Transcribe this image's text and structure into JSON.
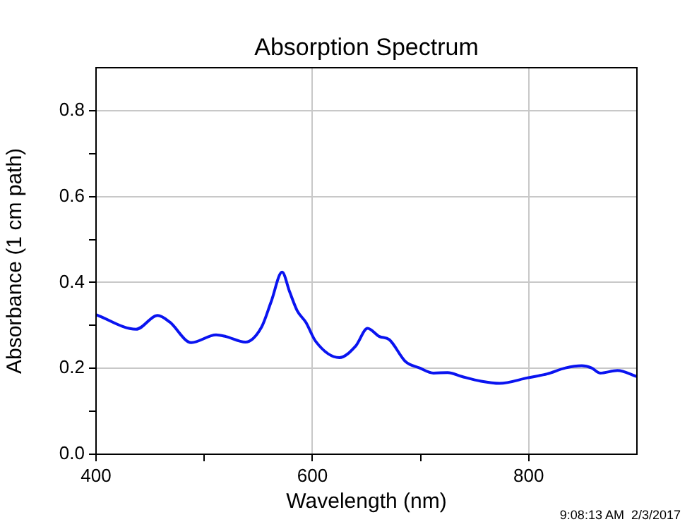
{
  "chart_data": {
    "type": "line",
    "title": "Absorption Spectrum",
    "xlabel": "Wavelength (nm)",
    "ylabel": "Absorbance (1 cm path)",
    "annotations": [
      "9:08:13 AM  2/3/2017"
    ],
    "xlim": [
      400,
      900
    ],
    "xticks": [
      400,
      {
        "value": 500,
        "label": null
      },
      600,
      {
        "value": 700,
        "label": null
      },
      800
    ],
    "ylim": [
      0,
      0.9
    ],
    "yticks": [
      {
        "value": 0,
        "label": "0.0"
      },
      {
        "value": 0.1,
        "label": null
      },
      0.2,
      {
        "value": 0.3,
        "label": null
      },
      0.4,
      {
        "value": 0.5,
        "label": null
      },
      0.6,
      {
        "value": 0.7,
        "label": null
      },
      0.8
    ],
    "grid": true,
    "marker": "none",
    "line_style": "solid",
    "series": [
      {
        "color": "#0a14f0",
        "x": [
          400,
          437,
          457,
          468,
          488,
          511,
          520,
          538,
          553,
          562,
          572,
          579,
          586,
          594,
          603,
          625,
          640,
          651,
          662,
          671,
          686,
          699,
          712,
          725,
          738,
          756,
          773,
          799,
          817,
          834,
          849,
          858,
          866,
          882,
          900
        ],
        "values": [
          0.325,
          0.291,
          0.323,
          0.308,
          0.26,
          0.278,
          0.274,
          0.261,
          0.296,
          0.356,
          0.424,
          0.378,
          0.334,
          0.307,
          0.263,
          0.225,
          0.252,
          0.293,
          0.274,
          0.267,
          0.216,
          0.201,
          0.189,
          0.19,
          0.181,
          0.17,
          0.165,
          0.178,
          0.187,
          0.201,
          0.206,
          0.201,
          0.189,
          0.195,
          0.181
        ]
      }
    ]
  }
}
